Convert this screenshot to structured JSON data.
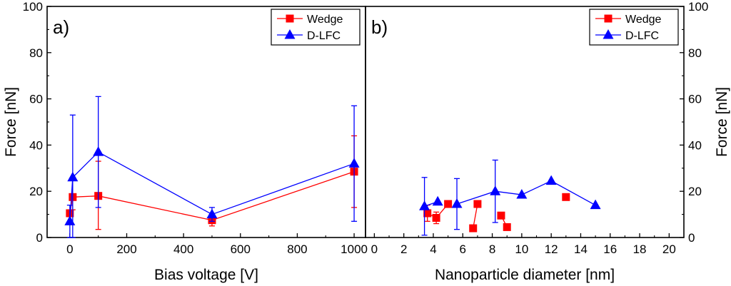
{
  "chart_data": [
    {
      "panel_label": "a)",
      "type": "line",
      "xlabel": "Bias voltage [V]",
      "ylabel": "Force [nN]",
      "xlim": [
        -80,
        1040
      ],
      "ylim": [
        0,
        100
      ],
      "x_ticks": [
        0,
        200,
        400,
        600,
        800,
        1000
      ],
      "y_ticks": [
        0,
        20,
        40,
        60,
        80,
        100
      ],
      "legend_position": "top-right",
      "series": [
        {
          "name": "Wedge",
          "marker": "square",
          "color": "#ff0000",
          "points": [
            {
              "x": 0,
              "y": 10.5,
              "err_lo": 9.5,
              "err_hi": 11.5
            },
            {
              "x": 10,
              "y": 17.5,
              "err_lo": 12,
              "err_hi": 26
            },
            {
              "x": 100,
              "y": 18,
              "err_lo": 3.5,
              "err_hi": 33
            },
            {
              "x": 500,
              "y": 7.5,
              "err_lo": 5,
              "err_hi": 10
            },
            {
              "x": 1000,
              "y": 28.5,
              "err_lo": 13,
              "err_hi": 44
            }
          ]
        },
        {
          "name": "D-LFC",
          "marker": "triangle",
          "color": "#0000ff",
          "points": [
            {
              "x": 0,
              "y": 7,
              "err_lo": 0,
              "err_hi": 14
            },
            {
              "x": 10,
              "y": 26,
              "err_lo": 0,
              "err_hi": 53
            },
            {
              "x": 100,
              "y": 37,
              "err_lo": 13,
              "err_hi": 61
            },
            {
              "x": 500,
              "y": 10,
              "err_lo": 7,
              "err_hi": 13
            },
            {
              "x": 1000,
              "y": 32,
              "err_lo": 7,
              "err_hi": 57
            }
          ]
        }
      ]
    },
    {
      "panel_label": "b)",
      "type": "line",
      "xlabel": "Nanoparticle diameter [nm]",
      "ylabel": "Force [nN]",
      "xlim": [
        -0.6,
        21
      ],
      "ylim": [
        0,
        100
      ],
      "x_ticks": [
        0,
        2,
        4,
        6,
        8,
        10,
        12,
        14,
        16,
        18,
        20
      ],
      "y_ticks": [
        0,
        20,
        40,
        60,
        80,
        100
      ],
      "legend_position": "top-right",
      "series": [
        {
          "name": "Wedge",
          "marker": "square",
          "color": "#ff0000",
          "segments": [
            [
              {
                "x": 3.6,
                "y": 10.5,
                "err_lo": 7,
                "err_hi": 14
              },
              {
                "x": 4.2,
                "y": 8.5,
                "err_lo": 6,
                "err_hi": 11
              },
              {
                "x": 5.0,
                "y": 14.5
              }
            ],
            [
              {
                "x": 6.7,
                "y": 4
              },
              {
                "x": 7.0,
                "y": 14.5
              }
            ],
            [
              {
                "x": 8.6,
                "y": 9.5
              },
              {
                "x": 9.0,
                "y": 4.5
              }
            ],
            [
              {
                "x": 13.0,
                "y": 17.5
              }
            ]
          ]
        },
        {
          "name": "D-LFC",
          "marker": "triangle",
          "color": "#0000ff",
          "segments": [
            [
              {
                "x": 3.4,
                "y": 13.5,
                "err_lo": 1,
                "err_hi": 26
              },
              {
                "x": 4.3,
                "y": 15.5
              }
            ],
            [
              {
                "x": 5.6,
                "y": 14.5,
                "err_lo": 3.5,
                "err_hi": 25.5
              },
              {
                "x": 8.2,
                "y": 20,
                "err_lo": 6.5,
                "err_hi": 33.5
              },
              {
                "x": 10.0,
                "y": 18.5
              },
              {
                "x": 12.0,
                "y": 24.5
              },
              {
                "x": 15.0,
                "y": 14
              }
            ]
          ]
        }
      ]
    }
  ]
}
